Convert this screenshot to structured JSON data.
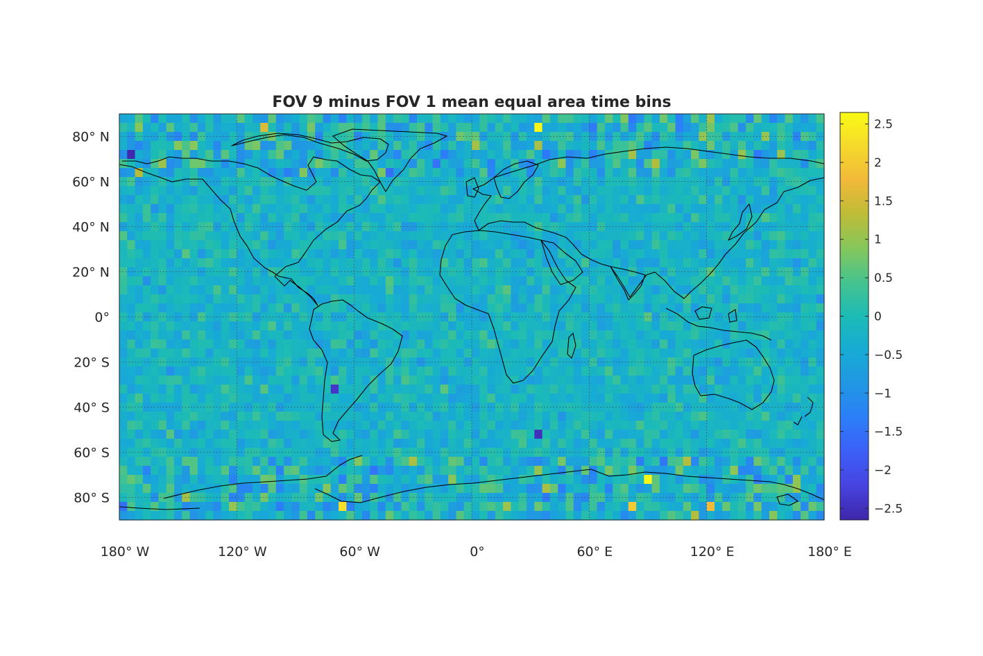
{
  "chart_data": {
    "type": "heatmap",
    "title": "FOV 9 minus FOV 1 mean equal area time bins",
    "xlabel": "",
    "ylabel": "",
    "projection": "equirectangular",
    "x_ticks": [
      {
        "value": -180,
        "label": "180° W"
      },
      {
        "value": -120,
        "label": "120° W"
      },
      {
        "value": -60,
        "label": "60° W"
      },
      {
        "value": 0,
        "label": "0°"
      },
      {
        "value": 60,
        "label": "60° E"
      },
      {
        "value": 120,
        "label": "120° E"
      },
      {
        "value": 180,
        "label": "180° E"
      }
    ],
    "y_ticks": [
      {
        "value": 80,
        "label": "80° N"
      },
      {
        "value": 60,
        "label": "60° N"
      },
      {
        "value": 40,
        "label": "40° N"
      },
      {
        "value": 20,
        "label": "20° N"
      },
      {
        "value": 0,
        "label": "0°"
      },
      {
        "value": -20,
        "label": "20° S"
      },
      {
        "value": -40,
        "label": "40° S"
      },
      {
        "value": -60,
        "label": "60° S"
      },
      {
        "value": -80,
        "label": "80° S"
      }
    ],
    "xlim": [
      -180,
      180
    ],
    "ylim": [
      -90,
      90
    ],
    "grid": true,
    "colorbar": {
      "position": "right",
      "range": [
        -2.65,
        2.65
      ],
      "ticks": [
        {
          "value": 2.5,
          "label": "2.5"
        },
        {
          "value": 2,
          "label": "2"
        },
        {
          "value": 1.5,
          "label": "1.5"
        },
        {
          "value": 1,
          "label": "1"
        },
        {
          "value": 0.5,
          "label": "0.5"
        },
        {
          "value": 0,
          "label": "0"
        },
        {
          "value": -0.5,
          "label": "−0.5"
        },
        {
          "value": -1,
          "label": "−1"
        },
        {
          "value": -1.5,
          "label": "−1.5"
        },
        {
          "value": -2,
          "label": "−2"
        },
        {
          "value": -2.5,
          "label": "−2.5"
        }
      ],
      "colormap": [
        "#3e26a8",
        "#4743e0",
        "#3c5ff7",
        "#2c7ef8",
        "#2197e3",
        "#17abd4",
        "#1cbbb6",
        "#45c38e",
        "#85c75c",
        "#bebc37",
        "#f1b93a",
        "#f6d92c",
        "#f9fb14"
      ]
    },
    "grid_cells": {
      "lon_bands": 90,
      "lat_bands": 45,
      "mean_value": -0.2,
      "typical_spread": 0.5,
      "notable_cells": [
        {
          "lon": 34,
          "lat": 85,
          "value": 2.6
        },
        {
          "lon": 90,
          "lat": -73,
          "value": 2.6
        },
        {
          "lon": -174,
          "lat": 71,
          "value": -2.6
        },
        {
          "lon": -66,
          "lat": -82,
          "value": 2.3
        },
        {
          "lon": -70,
          "lat": -32,
          "value": -2.4
        },
        {
          "lon": 34,
          "lat": -53,
          "value": -2.5
        },
        {
          "lon": 82,
          "lat": -82,
          "value": 2.0
        },
        {
          "lon": 122,
          "lat": -82,
          "value": 1.8
        },
        {
          "lon": -106,
          "lat": 83,
          "value": 1.6
        },
        {
          "lon": -122,
          "lat": -82,
          "value": 1.0
        }
      ]
    },
    "coastlines": "world continental outlines"
  }
}
